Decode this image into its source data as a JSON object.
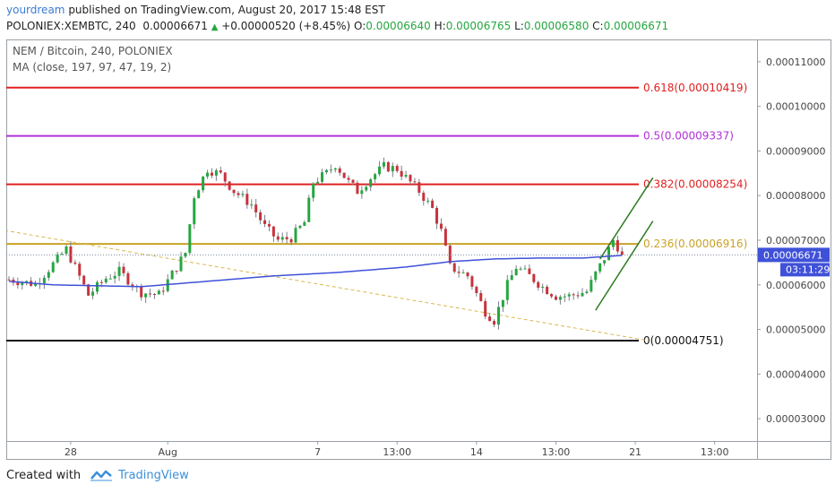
{
  "header": {
    "author": "yourdream",
    "published": "published on TradingView.com, August 20, 2017 15:48 EST"
  },
  "ticker": {
    "symbol": "POLONIEX:XEMBTC, 240",
    "last": "0.00006671",
    "change": "+0.00000520 (+8.45%)",
    "open_label": "O:",
    "open": "0.00006640",
    "high_label": "H:",
    "high": "0.00006765",
    "low_label": "L:",
    "low": "0.00006580",
    "close_label": "C:",
    "close": "0.00006671"
  },
  "footer": {
    "created_with": "Created with",
    "brand": "TradingView"
  },
  "colors": {
    "up": "#26a641",
    "down": "#c8323c",
    "ma": "#3f51d8",
    "fib_red": "#e02020",
    "fib_purple": "#b030d8",
    "fib_gold": "#c9a227",
    "price_tag": "#3f51d8",
    "dashed_trend": "#d8b850"
  },
  "chart_data": {
    "type": "candlestick",
    "title": "NEM / Bitcoin, 240, POLONIEX",
    "indicator": "MA (close, 197, 97, 47, 19, 2)",
    "yaxis": {
      "min": 2.5e-05,
      "max": 0.000115,
      "ticks": [
        {
          "v": 0.00011,
          "label": "0.00011000"
        },
        {
          "v": 0.0001,
          "label": "0.00010000"
        },
        {
          "v": 9e-05,
          "label": "0.00009000"
        },
        {
          "v": 8e-05,
          "label": "0.00008000"
        },
        {
          "v": 7e-05,
          "label": "0.00007000"
        },
        {
          "v": 6e-05,
          "label": "0.00006000"
        },
        {
          "v": 5e-05,
          "label": "0.00005000"
        },
        {
          "v": 4e-05,
          "label": "0.00004000"
        },
        {
          "v": 3e-05,
          "label": "0.00003000"
        }
      ]
    },
    "xaxis": {
      "labels": [
        {
          "i": 14,
          "label": "28"
        },
        {
          "i": 36,
          "label": "Aug"
        },
        {
          "i": 70,
          "label": "7"
        },
        {
          "i": 88,
          "label": "13:00"
        },
        {
          "i": 106,
          "label": "14"
        },
        {
          "i": 124,
          "label": "13:00"
        },
        {
          "i": 142,
          "label": "21"
        },
        {
          "i": 160,
          "label": "13:00"
        }
      ]
    },
    "fibonacci": [
      {
        "level": "0.618",
        "price": 0.00010419,
        "label": "0.618(0.00010419)",
        "color": "#e02020"
      },
      {
        "level": "0.5",
        "price": 9.337e-05,
        "label": "0.5(0.00009337)",
        "color": "#b030d8"
      },
      {
        "level": "0.382",
        "price": 8.254e-05,
        "label": "0.382(0.00008254)",
        "color": "#e02020"
      },
      {
        "level": "0.236",
        "price": 6.916e-05,
        "label": "0.236(0.00006916)",
        "color": "#c9a227"
      },
      {
        "level": "0",
        "price": 4.751e-05,
        "label": "0(0.00004751)",
        "color": "#111111"
      }
    ],
    "last_price": {
      "value": 6.671e-05,
      "label": "0.00006671",
      "countdown": "03:11:29"
    },
    "trendlines": [
      {
        "style": "dashed",
        "from": {
          "i": -1,
          "v": 7.22e-05
        },
        "to": {
          "i": 145,
          "v": 4.75e-05
        },
        "color": "#d8b850"
      },
      {
        "style": "solid",
        "from": {
          "i": 133,
          "v": 5.43e-05
        },
        "to": {
          "i": 146,
          "v": 7.43e-05
        },
        "color": "#2d7a1f"
      },
      {
        "style": "solid",
        "from": {
          "i": 134,
          "v": 6.58e-05
        },
        "to": {
          "i": 146,
          "v": 8.4e-05
        },
        "color": "#2d7a1f"
      }
    ],
    "anchors": [
      [
        0,
        6.12e-05
      ],
      [
        6,
        6.02e-05
      ],
      [
        13,
        6.8e-05
      ],
      [
        18,
        5.77e-05
      ],
      [
        22,
        6.15e-05
      ],
      [
        25,
        6.3e-05
      ],
      [
        30,
        5.83e-05
      ],
      [
        34,
        5.78e-05
      ],
      [
        38,
        6.4e-05
      ],
      [
        40,
        6.72e-05
      ],
      [
        42,
        8e-05
      ],
      [
        45,
        8.6e-05
      ],
      [
        48,
        8.47e-05
      ],
      [
        51,
        8.1e-05
      ],
      [
        55,
        7.8e-05
      ],
      [
        58,
        7.3e-05
      ],
      [
        61,
        7e-05
      ],
      [
        64,
        7.05e-05
      ],
      [
        67,
        7.4e-05
      ],
      [
        69,
        8.3e-05
      ],
      [
        72,
        8.5e-05
      ],
      [
        74,
        8.7e-05
      ],
      [
        77,
        8.3e-05
      ],
      [
        79,
        8.1e-05
      ],
      [
        82,
        8.4e-05
      ],
      [
        85,
        8.65e-05
      ],
      [
        88,
        8.6e-05
      ],
      [
        91,
        8.3e-05
      ],
      [
        93,
        8.1e-05
      ],
      [
        96,
        7.7e-05
      ],
      [
        98,
        7.2e-05
      ],
      [
        100,
        6.4e-05
      ],
      [
        104,
        6.2e-05
      ],
      [
        106,
        5.8e-05
      ],
      [
        108,
        5.4e-05
      ],
      [
        110,
        5.2e-05
      ],
      [
        113,
        6e-05
      ],
      [
        115,
        6.4e-05
      ],
      [
        118,
        6.2e-05
      ],
      [
        121,
        5.95e-05
      ],
      [
        124,
        5.75e-05
      ],
      [
        127,
        5.75e-05
      ],
      [
        131,
        5.85e-05
      ],
      [
        133,
        6.25e-05
      ],
      [
        135,
        6.6e-05
      ],
      [
        137,
        7e-05
      ],
      [
        139,
        6.71e-05
      ]
    ],
    "ma_anchors": [
      [
        0,
        6.08e-05
      ],
      [
        10,
        6e-05
      ],
      [
        30,
        5.96e-05
      ],
      [
        45,
        6.08e-05
      ],
      [
        60,
        6.2e-05
      ],
      [
        75,
        6.28e-05
      ],
      [
        90,
        6.4e-05
      ],
      [
        100,
        6.52e-05
      ],
      [
        110,
        6.58e-05
      ],
      [
        120,
        6.6e-05
      ],
      [
        130,
        6.6e-05
      ],
      [
        139,
        6.66e-05
      ]
    ]
  }
}
